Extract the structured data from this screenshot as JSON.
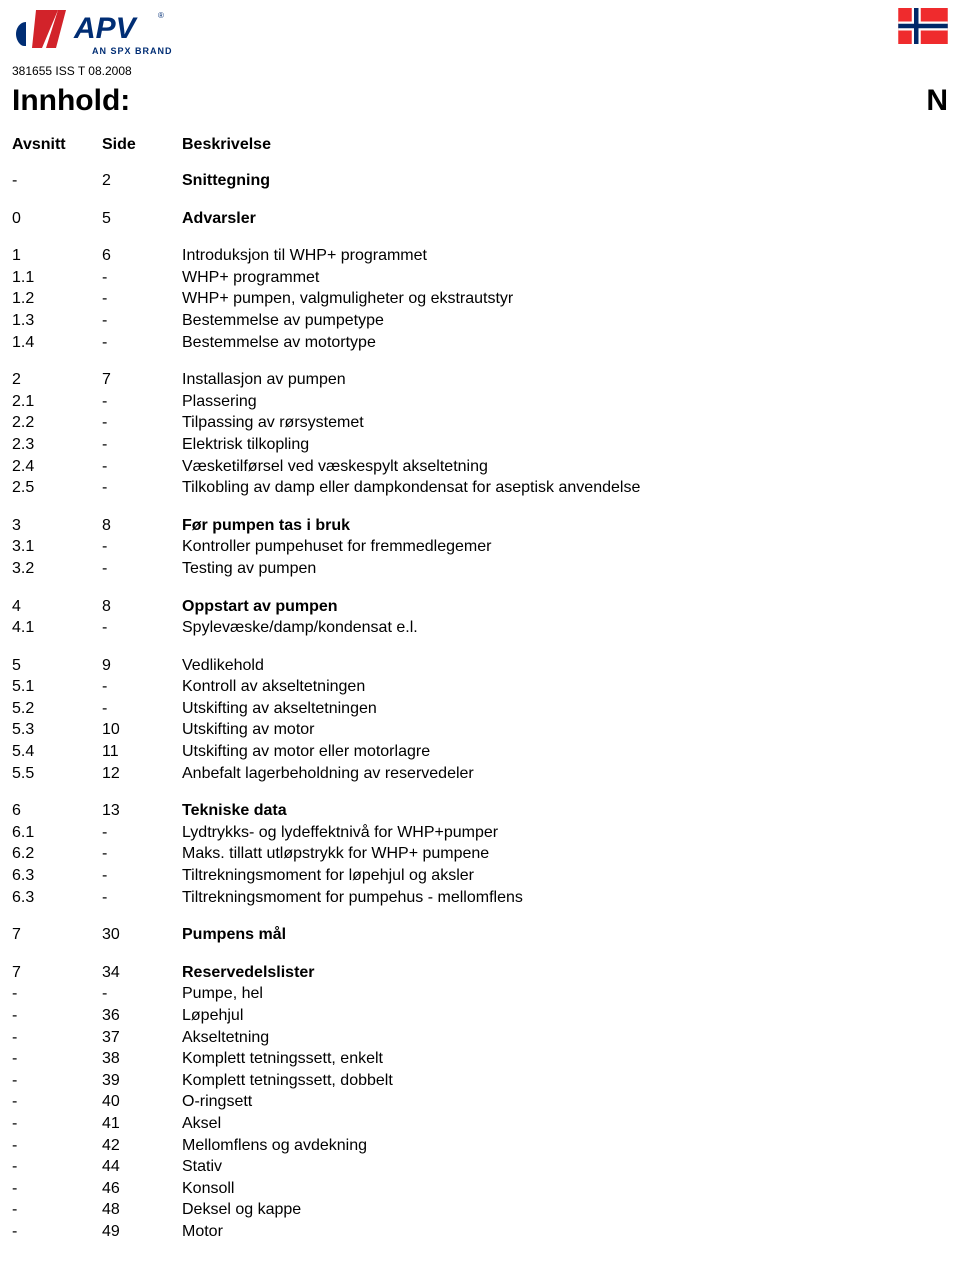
{
  "doc_ref": "381655 ISS T 08.2008",
  "tagline": "AN SPX BRAND",
  "title": "Innhold:",
  "lang_code": "N",
  "columns": {
    "section": "Avsnitt",
    "page": "Side",
    "desc": "Beskrivelse"
  },
  "colors": {
    "logo_red": "#d2232a",
    "logo_blue": "#002d74",
    "text": "#000000",
    "flag_red": "#ef2b2d",
    "flag_blue": "#002868",
    "flag_white": "#ffffff"
  },
  "groups": [
    {
      "rows": [
        {
          "sec": "-",
          "page": "2",
          "desc": "Snittegning",
          "bold": true
        }
      ]
    },
    {
      "rows": [
        {
          "sec": "0",
          "page": "5",
          "desc": "Advarsler",
          "bold": true
        }
      ]
    },
    {
      "rows": [
        {
          "sec": "1",
          "page": "6",
          "desc": "Introduksjon til WHP+ programmet",
          "bold": false
        },
        {
          "sec": "1.1",
          "page": "-",
          "desc": "WHP+ programmet",
          "bold": false
        },
        {
          "sec": "1.2",
          "page": "-",
          "desc": "WHP+ pumpen, valgmuligheter og ekstrautstyr",
          "bold": false
        },
        {
          "sec": "1.3",
          "page": "-",
          "desc": "Bestemmelse av pumpetype",
          "bold": false
        },
        {
          "sec": "1.4",
          "page": "-",
          "desc": "Bestemmelse av motortype",
          "bold": false
        }
      ]
    },
    {
      "rows": [
        {
          "sec": "2",
          "page": "7",
          "desc": "Installasjon av pumpen",
          "bold": false
        },
        {
          "sec": "2.1",
          "page": "-",
          "desc": "Plassering",
          "bold": false
        },
        {
          "sec": "2.2",
          "page": "-",
          "desc": "Tilpassing av rørsystemet",
          "bold": false
        },
        {
          "sec": "2.3",
          "page": "-",
          "desc": "Elektrisk tilkopling",
          "bold": false
        },
        {
          "sec": "2.4",
          "page": "-",
          "desc": "Væsketilførsel ved væskespylt akseltetning",
          "bold": false
        },
        {
          "sec": "2.5",
          "page": "-",
          "desc": "Tilkobling av damp eller dampkondensat for aseptisk anvendelse",
          "bold": false
        }
      ]
    },
    {
      "rows": [
        {
          "sec": "3",
          "page": "8",
          "desc": "Før pumpen tas i bruk",
          "bold": true
        },
        {
          "sec": "3.1",
          "page": "-",
          "desc": "Kontroller pumpehuset for fremmedlegemer",
          "bold": false
        },
        {
          "sec": "3.2",
          "page": "-",
          "desc": "Testing av pumpen",
          "bold": false
        }
      ]
    },
    {
      "rows": [
        {
          "sec": "4",
          "page": "8",
          "desc": "Oppstart av pumpen",
          "bold": true
        },
        {
          "sec": "4.1",
          "page": "-",
          "desc": "Spylevæske/damp/kondensat e.l.",
          "bold": false
        }
      ]
    },
    {
      "rows": [
        {
          "sec": "5",
          "page": "9",
          "desc": "Vedlikehold",
          "bold": false
        },
        {
          "sec": "5.1",
          "page": "-",
          "desc": "Kontroll av akseltetningen",
          "bold": false
        },
        {
          "sec": "5.2",
          "page": "-",
          "desc": "Utskifting av akseltetningen",
          "bold": false
        },
        {
          "sec": "5.3",
          "page": "10",
          "desc": "Utskifting av motor",
          "bold": false
        },
        {
          "sec": "5.4",
          "page": "11",
          "desc": "Utskifting av motor eller motorlagre",
          "bold": false
        },
        {
          "sec": "5.5",
          "page": "12",
          "desc": "Anbefalt lagerbeholdning av reservedeler",
          "bold": false
        }
      ]
    },
    {
      "rows": [
        {
          "sec": "6",
          "page": "13",
          "desc": "Tekniske data",
          "bold": true
        },
        {
          "sec": "6.1",
          "page": "-",
          "desc": "Lydtrykks- og lydeffektnivå for WHP+pumper",
          "bold": false
        },
        {
          "sec": "6.2",
          "page": "-",
          "desc": "Maks. tillatt utløpstrykk for WHP+ pumpene",
          "bold": false
        },
        {
          "sec": "6.3",
          "page": "-",
          "desc": "Tiltrekningsmoment for løpehjul og aksler",
          "bold": false
        },
        {
          "sec": "6.3",
          "page": "-",
          "desc": "Tiltrekningsmoment for pumpehus - mellomflens",
          "bold": false
        }
      ]
    },
    {
      "rows": [
        {
          "sec": "7",
          "page": "30",
          "desc": "Pumpens mål",
          "bold": true
        }
      ]
    },
    {
      "rows": [
        {
          "sec": "7",
          "page": "34",
          "desc": "Reservedelslister",
          "bold": true
        },
        {
          "sec": "-",
          "page": "-",
          "desc": "Pumpe, hel",
          "bold": false
        },
        {
          "sec": "-",
          "page": "36",
          "desc": "Løpehjul",
          "bold": false
        },
        {
          "sec": "-",
          "page": "37",
          "desc": "Akseltetning",
          "bold": false
        },
        {
          "sec": "-",
          "page": "38",
          "desc": "Komplett tetningssett, enkelt",
          "bold": false
        },
        {
          "sec": "-",
          "page": "39",
          "desc": "Komplett tetningssett, dobbelt",
          "bold": false
        },
        {
          "sec": "-",
          "page": "40",
          "desc": "O-ringsett",
          "bold": false
        },
        {
          "sec": "-",
          "page": "41",
          "desc": "Aksel",
          "bold": false
        },
        {
          "sec": "-",
          "page": "42",
          "desc": "Mellomflens og avdekning",
          "bold": false
        },
        {
          "sec": "-",
          "page": "44",
          "desc": "Stativ",
          "bold": false
        },
        {
          "sec": "-",
          "page": "46",
          "desc": "Konsoll",
          "bold": false
        },
        {
          "sec": "-",
          "page": "48",
          "desc": "Deksel og kappe",
          "bold": false
        },
        {
          "sec": "-",
          "page": "49",
          "desc": "Motor",
          "bold": false
        }
      ]
    }
  ]
}
